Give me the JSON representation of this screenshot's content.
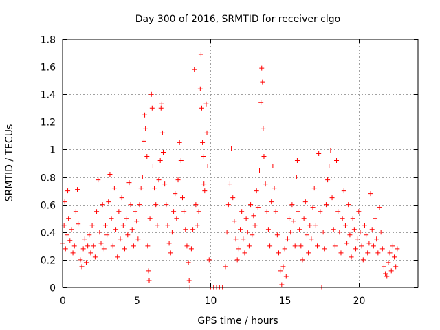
{
  "chart_data": {
    "type": "scatter",
    "title": "Day 300 of 2016, SRMTID for receiver clgo",
    "xlabel": "GPS time / hours",
    "ylabel": "SRMTID / TECUs",
    "xlim": [
      0,
      24
    ],
    "ylim": [
      0,
      1.8
    ],
    "xticks": [
      0,
      5,
      10,
      15,
      20
    ],
    "xtick_labels": [
      "0",
      "5",
      "10",
      "15",
      "20"
    ],
    "yticks": [
      0,
      0.2,
      0.4,
      0.6,
      0.8,
      1.0,
      1.2,
      1.4,
      1.6,
      1.8
    ],
    "ytick_labels": [
      "0",
      "0.2",
      "0.4",
      "0.6",
      "0.8",
      "1",
      "1.2",
      "1.4",
      "1.6",
      "1.8"
    ],
    "grid": true,
    "marker": "+",
    "series": [
      {
        "name": "SRMTID",
        "color": "#ff0000",
        "points": [
          [
            0.0,
            0.32
          ],
          [
            0.1,
            0.45
          ],
          [
            0.15,
            0.62
          ],
          [
            0.2,
            0.28
          ],
          [
            0.3,
            0.38
          ],
          [
            0.35,
            0.7
          ],
          [
            0.4,
            0.5
          ],
          [
            0.5,
            0.34
          ],
          [
            0.6,
            0.42
          ],
          [
            0.7,
            0.25
          ],
          [
            0.8,
            0.3
          ],
          [
            0.9,
            0.55
          ],
          [
            1.0,
            0.71
          ],
          [
            1.05,
            0.46
          ],
          [
            1.2,
            0.2
          ],
          [
            1.3,
            0.15
          ],
          [
            1.4,
            0.28
          ],
          [
            1.5,
            0.35
          ],
          [
            1.6,
            0.18
          ],
          [
            1.7,
            0.3
          ],
          [
            1.8,
            0.38
          ],
          [
            1.9,
            0.25
          ],
          [
            2.0,
            0.45
          ],
          [
            2.1,
            0.3
          ],
          [
            2.2,
            0.22
          ],
          [
            2.3,
            0.55
          ],
          [
            2.4,
            0.78
          ],
          [
            2.5,
            0.4
          ],
          [
            2.6,
            0.32
          ],
          [
            2.7,
            0.6
          ],
          [
            2.8,
            0.28
          ],
          [
            2.9,
            0.45
          ],
          [
            3.0,
            0.38
          ],
          [
            3.1,
            0.62
          ],
          [
            3.2,
            0.82
          ],
          [
            3.3,
            0.5
          ],
          [
            3.4,
            0.3
          ],
          [
            3.5,
            0.72
          ],
          [
            3.6,
            0.42
          ],
          [
            3.7,
            0.22
          ],
          [
            3.8,
            0.55
          ],
          [
            3.9,
            0.35
          ],
          [
            4.0,
            0.65
          ],
          [
            4.1,
            0.45
          ],
          [
            4.2,
            0.28
          ],
          [
            4.3,
            0.5
          ],
          [
            4.4,
            0.38
          ],
          [
            4.5,
            0.76
          ],
          [
            4.6,
            0.6
          ],
          [
            4.7,
            0.42
          ],
          [
            4.8,
            0.3
          ],
          [
            4.9,
            0.55
          ],
          [
            5.0,
            0.48
          ],
          [
            5.1,
            0.35
          ],
          [
            5.2,
            0.6
          ],
          [
            5.3,
            0.72
          ],
          [
            5.4,
            0.8
          ],
          [
            5.5,
            1.06
          ],
          [
            5.55,
            1.25
          ],
          [
            5.6,
            1.15
          ],
          [
            5.7,
            0.95
          ],
          [
            5.75,
            0.3
          ],
          [
            5.8,
            0.12
          ],
          [
            5.85,
            0.05
          ],
          [
            5.9,
            0.5
          ],
          [
            6.0,
            1.4
          ],
          [
            6.05,
            1.3
          ],
          [
            6.1,
            0.88
          ],
          [
            6.2,
            0.72
          ],
          [
            6.3,
            0.6
          ],
          [
            6.4,
            0.45
          ],
          [
            6.5,
            0.78
          ],
          [
            6.6,
            0.92
          ],
          [
            6.65,
            1.3
          ],
          [
            6.7,
            1.33
          ],
          [
            6.75,
            1.12
          ],
          [
            6.8,
            0.98
          ],
          [
            6.9,
            0.75
          ],
          [
            7.0,
            0.6
          ],
          [
            7.1,
            0.45
          ],
          [
            7.2,
            0.32
          ],
          [
            7.3,
            0.25
          ],
          [
            7.4,
            0.4
          ],
          [
            7.5,
            0.55
          ],
          [
            7.6,
            0.68
          ],
          [
            7.7,
            0.5
          ],
          [
            7.8,
            0.78
          ],
          [
            7.9,
            1.05
          ],
          [
            8.0,
            0.92
          ],
          [
            8.1,
            0.65
          ],
          [
            8.2,
            0.55
          ],
          [
            8.3,
            0.42
          ],
          [
            8.4,
            0.3
          ],
          [
            8.5,
            0.18
          ],
          [
            8.55,
            0.05
          ],
          [
            8.6,
            0.0
          ],
          [
            8.7,
            0.28
          ],
          [
            8.8,
            0.42
          ],
          [
            8.9,
            1.58
          ],
          [
            9.0,
            0.6
          ],
          [
            9.1,
            0.45
          ],
          [
            9.2,
            0.55
          ],
          [
            9.3,
            1.44
          ],
          [
            9.35,
            1.69
          ],
          [
            9.4,
            1.3
          ],
          [
            9.45,
            1.05
          ],
          [
            9.5,
            0.95
          ],
          [
            9.55,
            0.75
          ],
          [
            9.6,
            0.7
          ],
          [
            9.7,
            1.33
          ],
          [
            9.75,
            1.12
          ],
          [
            9.8,
            0.88
          ],
          [
            9.9,
            0.2
          ],
          [
            10.0,
            0.0
          ],
          [
            10.2,
            0.0
          ],
          [
            10.4,
            0.0
          ],
          [
            10.6,
            0.0
          ],
          [
            10.8,
            0.0
          ],
          [
            11.0,
            0.15
          ],
          [
            11.1,
            0.4
          ],
          [
            11.2,
            0.6
          ],
          [
            11.3,
            0.75
          ],
          [
            11.4,
            1.01
          ],
          [
            11.5,
            0.65
          ],
          [
            11.6,
            0.48
          ],
          [
            11.7,
            0.35
          ],
          [
            11.8,
            0.2
          ],
          [
            11.9,
            0.28
          ],
          [
            12.0,
            0.42
          ],
          [
            12.1,
            0.55
          ],
          [
            12.2,
            0.35
          ],
          [
            12.3,
            0.25
          ],
          [
            12.4,
            0.5
          ],
          [
            12.5,
            0.4
          ],
          [
            12.6,
            0.3
          ],
          [
            12.7,
            0.6
          ],
          [
            12.8,
            0.38
          ],
          [
            12.9,
            0.52
          ],
          [
            13.0,
            0.45
          ],
          [
            13.1,
            0.7
          ],
          [
            13.2,
            0.58
          ],
          [
            13.3,
            0.85
          ],
          [
            13.4,
            1.34
          ],
          [
            13.45,
            1.59
          ],
          [
            13.5,
            1.49
          ],
          [
            13.55,
            1.15
          ],
          [
            13.6,
            0.95
          ],
          [
            13.7,
            0.75
          ],
          [
            13.8,
            0.55
          ],
          [
            13.9,
            0.42
          ],
          [
            14.0,
            0.3
          ],
          [
            14.1,
            0.62
          ],
          [
            14.2,
            0.88
          ],
          [
            14.3,
            0.72
          ],
          [
            14.4,
            0.55
          ],
          [
            14.5,
            0.38
          ],
          [
            14.6,
            0.25
          ],
          [
            14.7,
            0.12
          ],
          [
            14.8,
            0.02
          ],
          [
            14.9,
            0.15
          ],
          [
            15.0,
            0.28
          ],
          [
            15.1,
            0.08
          ],
          [
            15.2,
            0.35
          ],
          [
            15.3,
            0.5
          ],
          [
            15.4,
            0.4
          ],
          [
            15.5,
            0.6
          ],
          [
            15.6,
            0.48
          ],
          [
            15.7,
            0.3
          ],
          [
            15.8,
            0.8
          ],
          [
            15.85,
            0.92
          ],
          [
            15.9,
            0.55
          ],
          [
            16.0,
            0.42
          ],
          [
            16.1,
            0.3
          ],
          [
            16.2,
            0.2
          ],
          [
            16.3,
            0.5
          ],
          [
            16.4,
            0.62
          ],
          [
            16.5,
            0.38
          ],
          [
            16.6,
            0.25
          ],
          [
            16.7,
            0.45
          ],
          [
            16.8,
            0.35
          ],
          [
            16.9,
            0.58
          ],
          [
            17.0,
            0.72
          ],
          [
            17.1,
            0.45
          ],
          [
            17.2,
            0.3
          ],
          [
            17.3,
            0.97
          ],
          [
            17.4,
            0.55
          ],
          [
            17.5,
            0.0
          ],
          [
            17.6,
            0.4
          ],
          [
            17.7,
            0.28
          ],
          [
            17.8,
            0.6
          ],
          [
            17.9,
            0.78
          ],
          [
            18.0,
            0.88
          ],
          [
            18.1,
            0.99
          ],
          [
            18.2,
            0.65
          ],
          [
            18.3,
            0.42
          ],
          [
            18.4,
            0.3
          ],
          [
            18.5,
            0.92
          ],
          [
            18.6,
            0.55
          ],
          [
            18.7,
            0.4
          ],
          [
            18.8,
            0.25
          ],
          [
            18.9,
            0.5
          ],
          [
            19.0,
            0.7
          ],
          [
            19.1,
            0.45
          ],
          [
            19.2,
            0.32
          ],
          [
            19.3,
            0.6
          ],
          [
            19.4,
            0.38
          ],
          [
            19.5,
            0.22
          ],
          [
            19.6,
            0.5
          ],
          [
            19.7,
            0.42
          ],
          [
            19.8,
            0.28
          ],
          [
            19.9,
            0.35
          ],
          [
            20.0,
            0.55
          ],
          [
            20.1,
            0.4
          ],
          [
            20.2,
            0.3
          ],
          [
            20.3,
            0.2
          ],
          [
            20.4,
            0.45
          ],
          [
            20.5,
            0.38
          ],
          [
            20.6,
            0.25
          ],
          [
            20.7,
            0.32
          ],
          [
            20.8,
            0.68
          ],
          [
            20.9,
            0.42
          ],
          [
            21.0,
            0.3
          ],
          [
            21.1,
            0.5
          ],
          [
            21.2,
            0.35
          ],
          [
            21.3,
            0.25
          ],
          [
            21.4,
            0.58
          ],
          [
            21.5,
            0.4
          ],
          [
            21.6,
            0.28
          ],
          [
            21.7,
            0.15
          ],
          [
            21.8,
            0.1
          ],
          [
            21.9,
            0.08
          ],
          [
            22.0,
            0.18
          ],
          [
            22.1,
            0.25
          ],
          [
            22.2,
            0.12
          ],
          [
            22.3,
            0.3
          ],
          [
            22.4,
            0.22
          ],
          [
            22.5,
            0.15
          ],
          [
            22.6,
            0.28
          ]
        ]
      }
    ]
  }
}
